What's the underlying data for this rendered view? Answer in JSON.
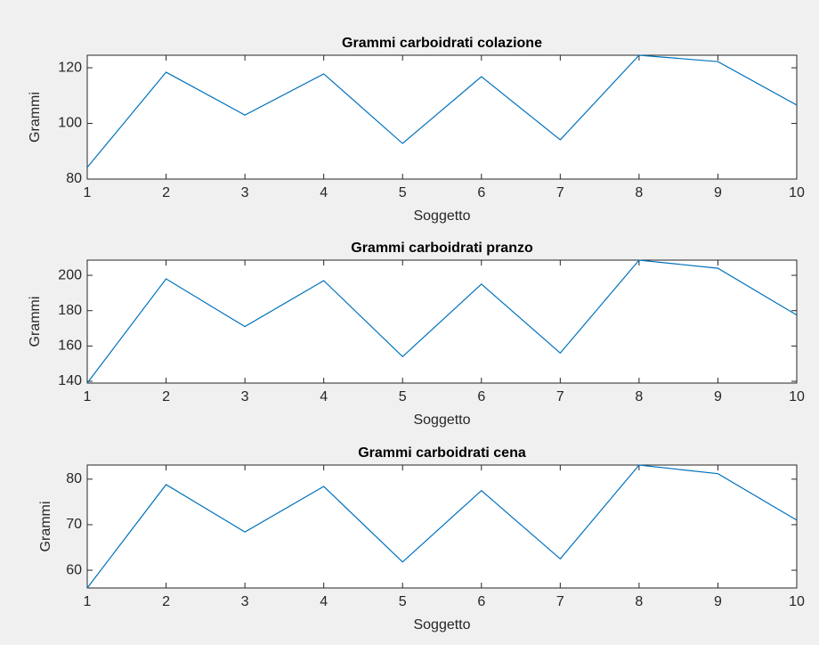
{
  "chart_data": [
    {
      "type": "line",
      "title": "Grammi carboidrati colazione",
      "xlabel": "Soggetto",
      "ylabel": "Grammi",
      "x": [
        1,
        2,
        3,
        4,
        5,
        6,
        7,
        8,
        9,
        10
      ],
      "values": [
        84.2,
        118.4,
        103.0,
        117.8,
        92.8,
        116.8,
        94.1,
        124.5,
        122.2,
        106.6
      ],
      "color": "#0072bd",
      "xlim": [
        1,
        10
      ],
      "xticks": [
        1,
        2,
        3,
        4,
        5,
        6,
        7,
        8,
        9,
        10
      ],
      "ylim": [
        80,
        124.5
      ],
      "yticks": [
        80,
        100,
        120
      ],
      "grid": false
    },
    {
      "type": "line",
      "title": "Grammi carboidrati pranzo",
      "xlabel": "Soggetto",
      "ylabel": "Grammi",
      "x": [
        1,
        2,
        3,
        4,
        5,
        6,
        7,
        8,
        9,
        10
      ],
      "values": [
        139,
        198,
        171,
        197,
        154,
        195,
        156,
        208.6,
        204,
        177.5
      ],
      "color": "#0072bd",
      "xlim": [
        1,
        10
      ],
      "xticks": [
        1,
        2,
        3,
        4,
        5,
        6,
        7,
        8,
        9,
        10
      ],
      "ylim": [
        139,
        208.6
      ],
      "yticks": [
        140,
        160,
        180,
        200
      ],
      "grid": false
    },
    {
      "type": "line",
      "title": "Grammi carboidrati cena",
      "xlabel": "Soggetto",
      "ylabel": "Grammi",
      "x": [
        1,
        2,
        3,
        4,
        5,
        6,
        7,
        8,
        9,
        10
      ],
      "values": [
        56.1,
        78.8,
        68.4,
        78.4,
        61.8,
        77.5,
        62.5,
        83.1,
        81.2,
        71.0
      ],
      "color": "#0072bd",
      "xlim": [
        1,
        10
      ],
      "xticks": [
        1,
        2,
        3,
        4,
        5,
        6,
        7,
        8,
        9,
        10
      ],
      "ylim": [
        56.1,
        83.1
      ],
      "yticks": [
        60,
        70,
        80
      ],
      "grid": false
    }
  ]
}
